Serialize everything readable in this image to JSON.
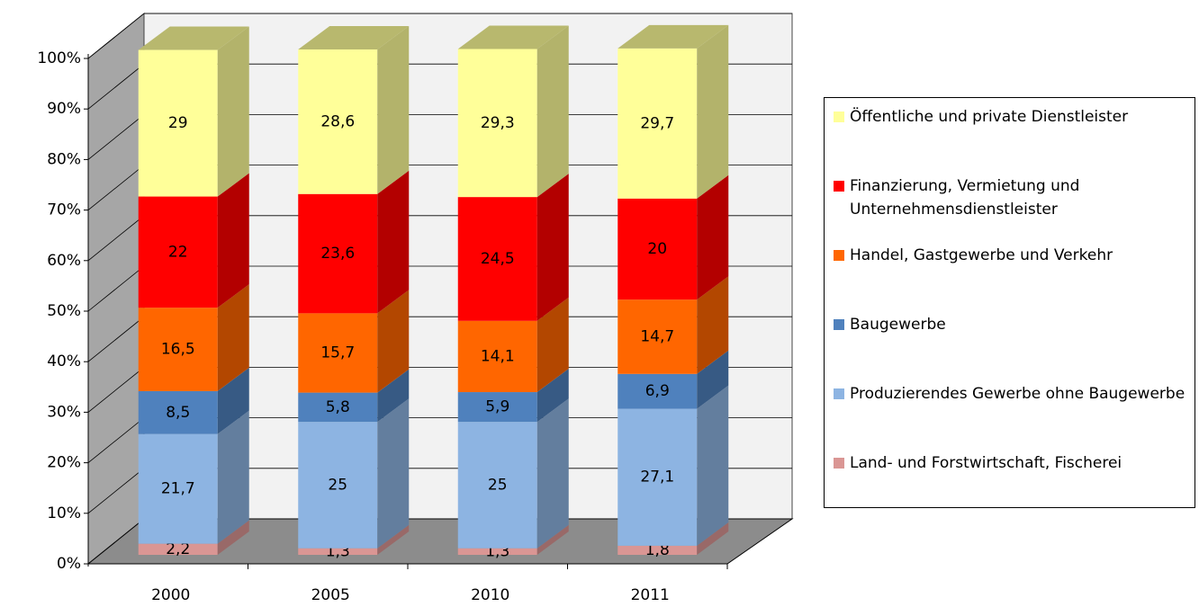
{
  "chart_data": {
    "type": "bar",
    "stacked": true,
    "categories": [
      "2000",
      "2005",
      "2010",
      "2011"
    ],
    "series": [
      {
        "name": "Land- und Forstwirtschaft, Fischerei",
        "color": "#da9694",
        "values": [
          2.2,
          1.3,
          1.3,
          1.8
        ],
        "value_labels": [
          "2,2",
          "1,3",
          "1,3",
          "1,8"
        ]
      },
      {
        "name": "Produzierendes Gewerbe ohne Baugewerbe",
        "color": "#8db4e2",
        "values": [
          21.7,
          25,
          25,
          27.1
        ],
        "value_labels": [
          "21,7",
          "25",
          "25",
          "27,1"
        ]
      },
      {
        "name": "Baugewerbe",
        "color": "#4f81bd",
        "values": [
          8.5,
          5.8,
          5.9,
          6.9
        ],
        "value_labels": [
          "8,5",
          "5,8",
          "5,9",
          "6,9"
        ]
      },
      {
        "name": "Handel, Gastgewerbe und Verkehr",
        "color": "#ff6600",
        "values": [
          16.5,
          15.7,
          14.1,
          14.7
        ],
        "value_labels": [
          "16,5",
          "15,7",
          "14,1",
          "14,7"
        ]
      },
      {
        "name": "Finanzierung, Vermietung und Unternehmensdienstleister",
        "color": "#ff0000",
        "values": [
          22,
          23.6,
          24.5,
          20
        ],
        "value_labels": [
          "22",
          "23,6",
          "24,5",
          "20"
        ]
      },
      {
        "name": "Öffentliche und private Dienstleister",
        "color": "#ffff99",
        "values": [
          29,
          28.6,
          29.3,
          29.7
        ],
        "value_labels": [
          "29",
          "28,6",
          "29,3",
          "29,7"
        ]
      }
    ],
    "ylim": [
      0,
      100
    ],
    "yticks": [
      {
        "value": 0,
        "label": "0%"
      },
      {
        "value": 10,
        "label": "10%"
      },
      {
        "value": 20,
        "label": "20%"
      },
      {
        "value": 30,
        "label": "30%"
      },
      {
        "value": 40,
        "label": "40%"
      },
      {
        "value": 50,
        "label": "50%"
      },
      {
        "value": 60,
        "label": "60%"
      },
      {
        "value": 70,
        "label": "70%"
      },
      {
        "value": 80,
        "label": "80%"
      },
      {
        "value": 90,
        "label": "90%"
      },
      {
        "value": 100,
        "label": "100%"
      }
    ],
    "grid": true,
    "legend": "right"
  }
}
